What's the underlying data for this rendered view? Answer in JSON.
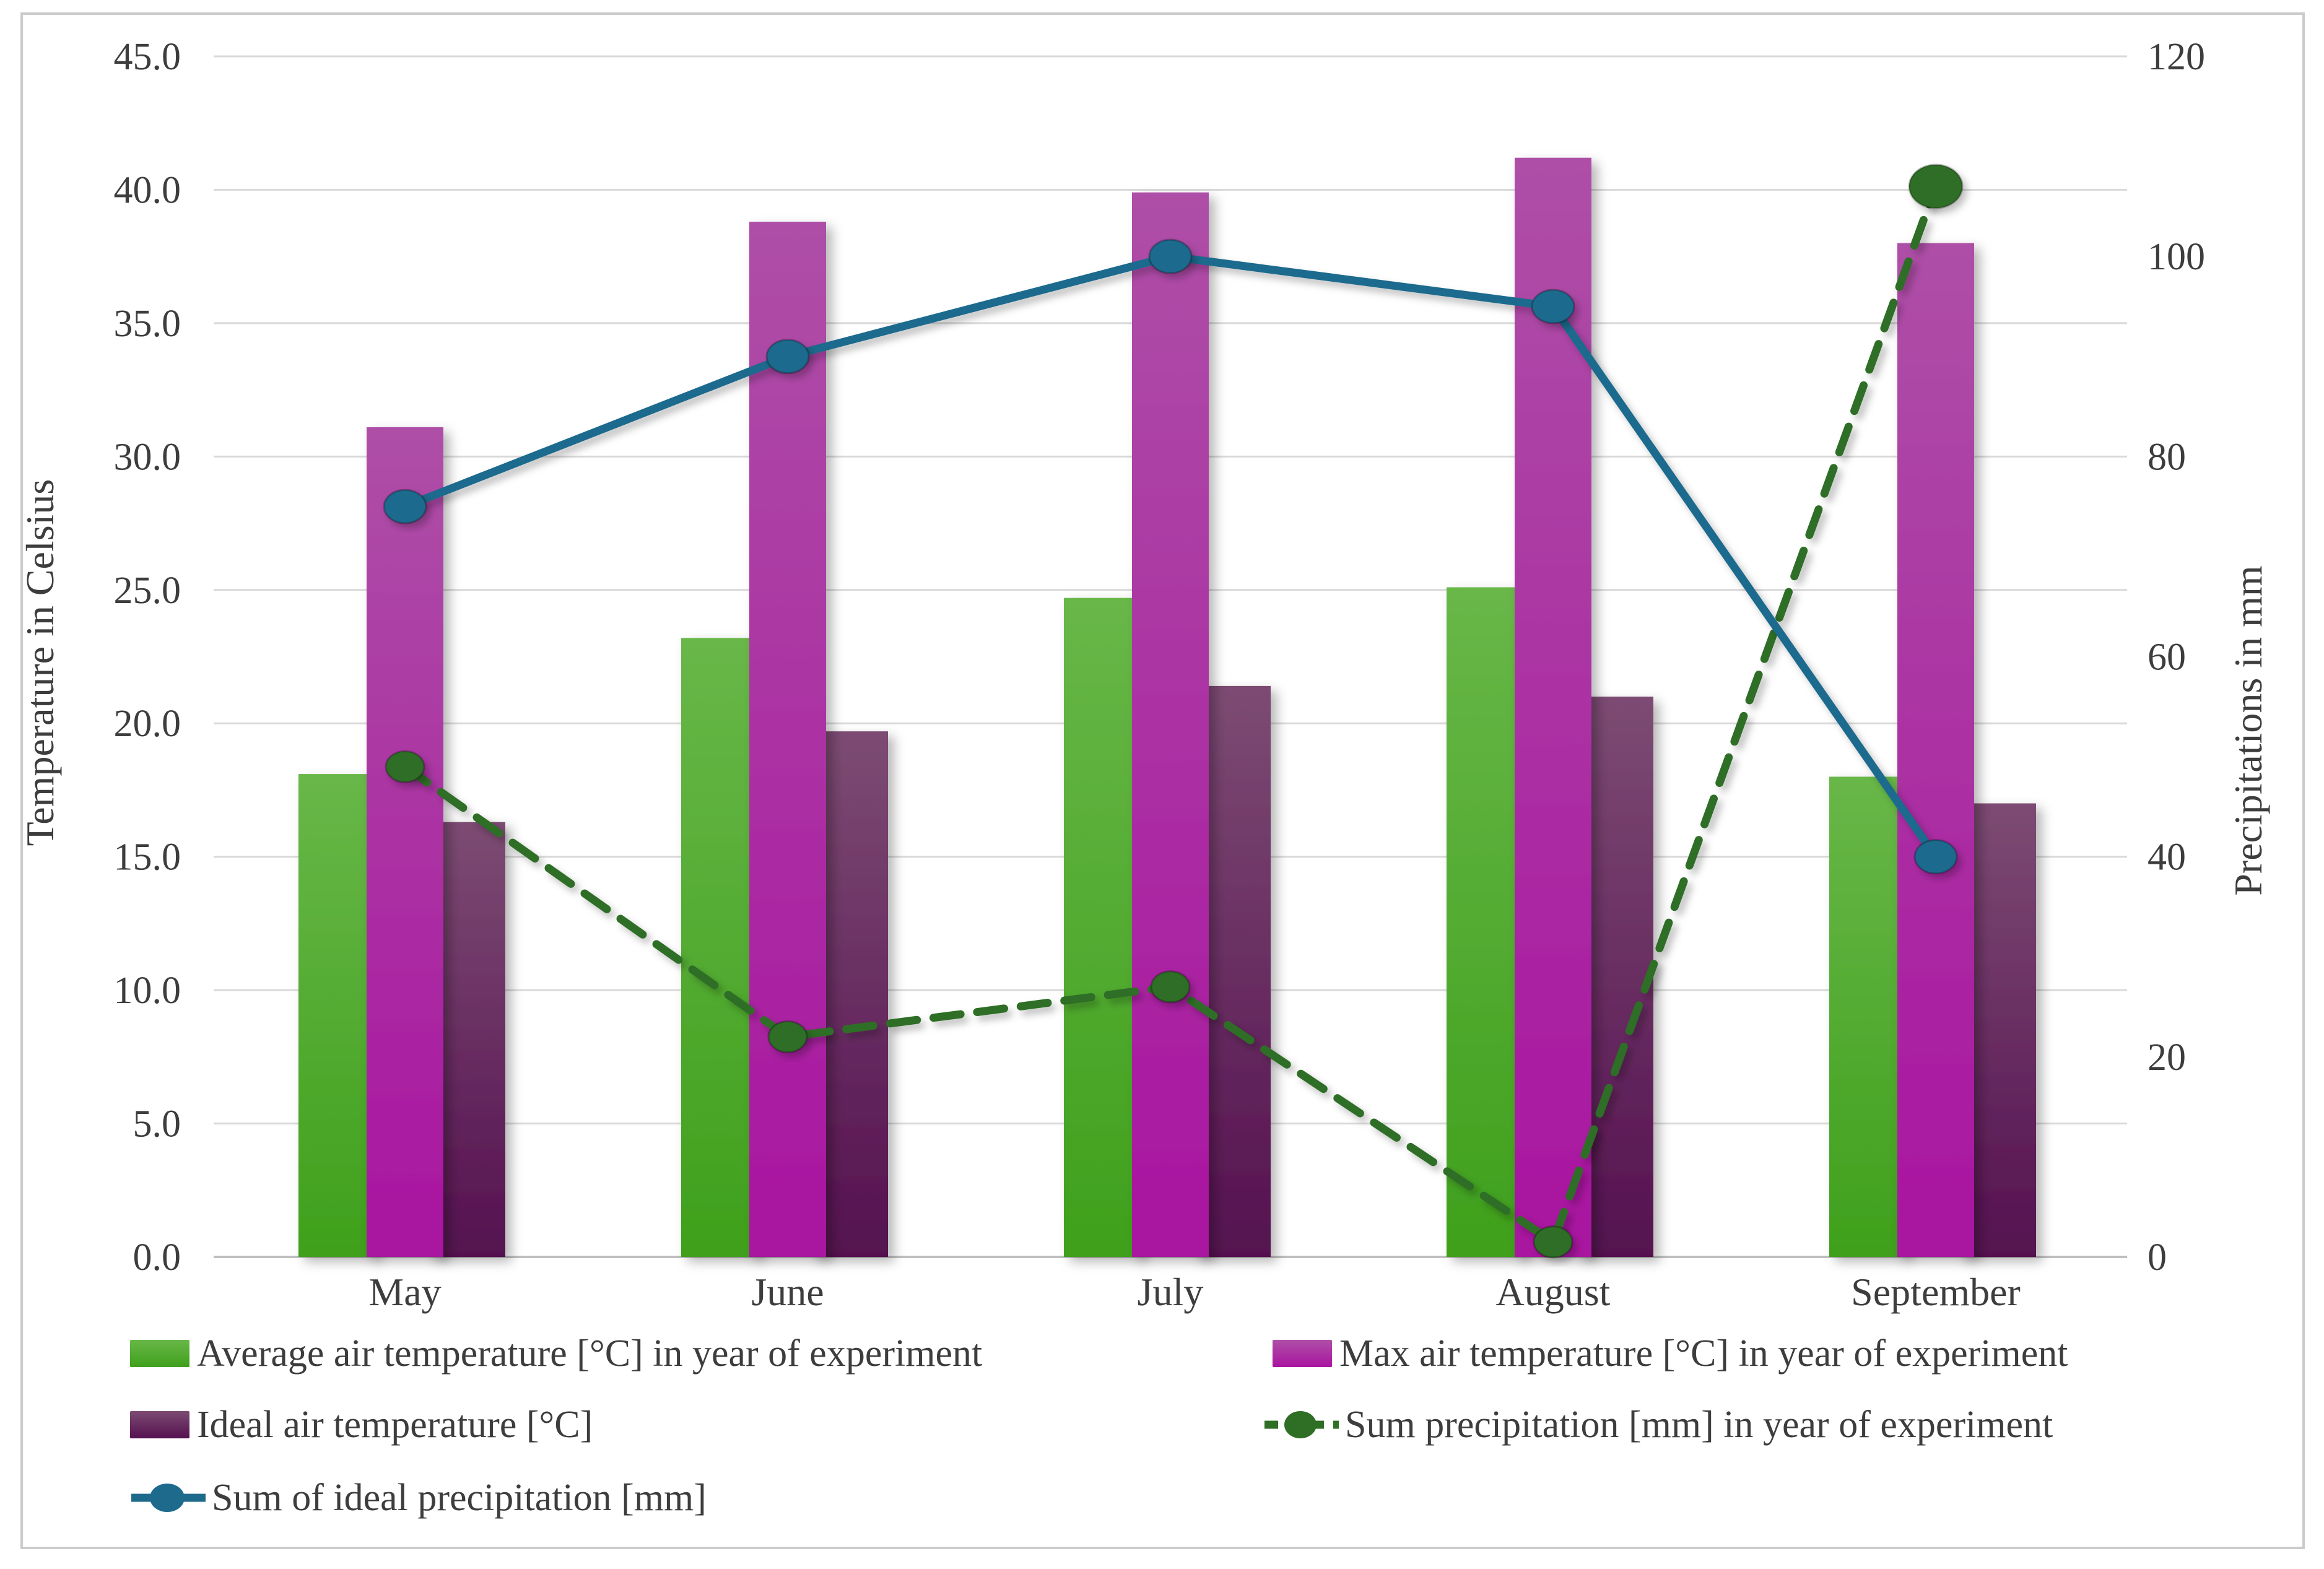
{
  "frame": {
    "border_color": "#cbcbcb",
    "background": "#ffffff"
  },
  "chart_data": {
    "type": "combo-bar-line",
    "categories": [
      "May",
      "June",
      "July",
      "August",
      "September"
    ],
    "bar_series": [
      {
        "name": "Average air temperature [°C] in year of experiment",
        "values": [
          18.1,
          23.2,
          24.7,
          25.1,
          18.0
        ],
        "axis": "left",
        "color_top": "#68b748",
        "color_bottom": "#3fa01c"
      },
      {
        "name": "Max air temperature [°C] in year of experiment",
        "values": [
          31.1,
          38.8,
          39.9,
          41.2,
          38.0
        ],
        "axis": "left",
        "color_top": "#ae4fa7",
        "color_bottom": "#a914a0"
      },
      {
        "name": "Ideal air temperature [°C]",
        "values": [
          16.3,
          19.7,
          21.4,
          21.0,
          17.0
        ],
        "axis": "left",
        "color_top": "#7c4b73",
        "color_bottom": "#551150"
      }
    ],
    "line_series": [
      {
        "name": "Sum precipitation [mm] in year of experiment",
        "values": [
          49,
          22,
          27,
          1.5,
          107
        ],
        "axis": "right",
        "style": "dashed",
        "color": "#2e6e25"
      },
      {
        "name": "Sum of ideal precipitation [mm]",
        "values": [
          75,
          90,
          100,
          95,
          40
        ],
        "axis": "right",
        "style": "solid",
        "color": "#1e6a8d"
      }
    ],
    "left_axis": {
      "title": "Temperature in Celsius",
      "min": 0,
      "max": 45,
      "step": 5,
      "tick_labels": [
        "0.0",
        "5.0",
        "10.0",
        "15.0",
        "20.0",
        "25.0",
        "30.0",
        "35.0",
        "40.0",
        "45.0"
      ]
    },
    "right_axis": {
      "title": "Precipitations in mm",
      "min": 0,
      "max": 120,
      "step": 20,
      "tick_labels": [
        "0",
        "20",
        "40",
        "60",
        "80",
        "100",
        "120"
      ]
    },
    "legend_position": "bottom",
    "grid": "horizontal",
    "gridline_color": "#d9d9d9",
    "axis_line_color": "#bfbfbf",
    "text_color": "#3d3d3d"
  }
}
